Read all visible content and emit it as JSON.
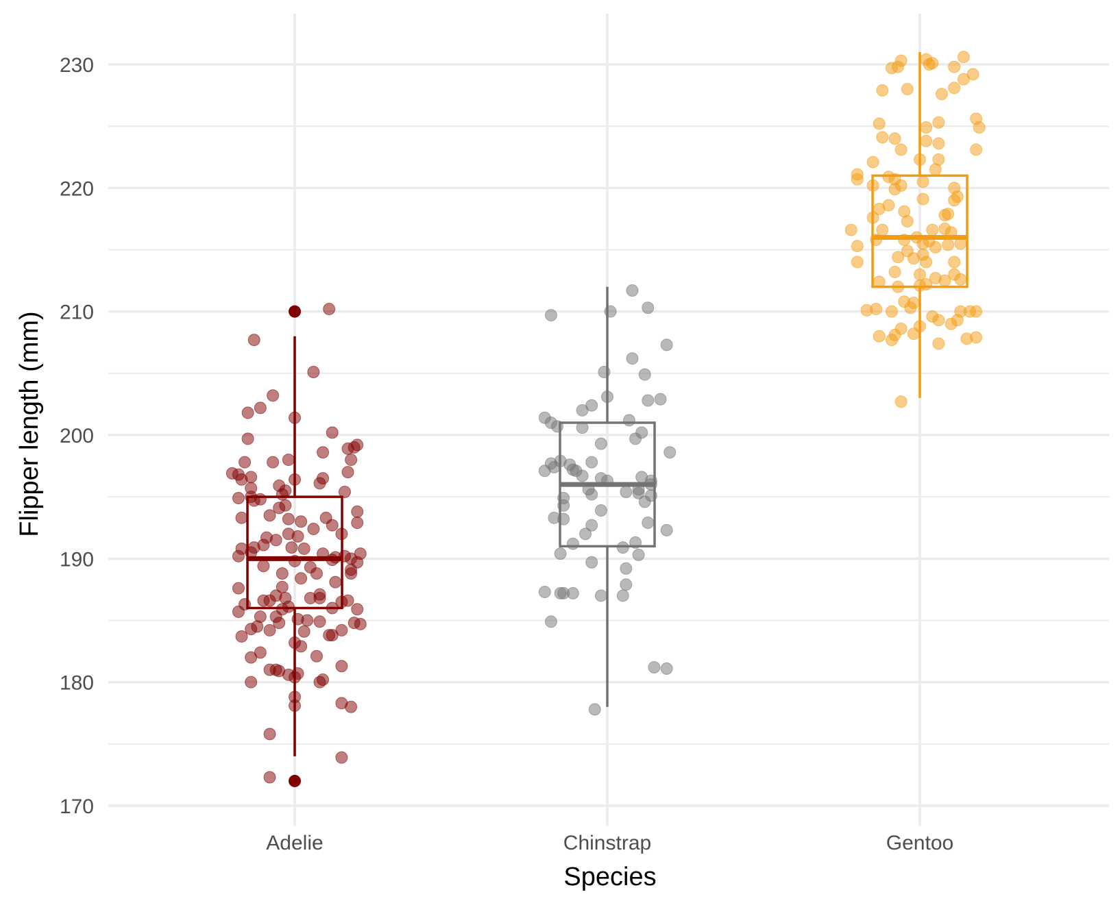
{
  "chart_data": {
    "type": "box",
    "xlabel": "Species",
    "ylabel": "Flipper length (mm)",
    "ylim": [
      168,
      234
    ],
    "yticks": [
      170,
      180,
      190,
      200,
      210,
      220,
      230
    ],
    "categories": [
      "Adelie",
      "Chinstrap",
      "Gentoo"
    ],
    "grid": true,
    "legend": "none",
    "series": [
      {
        "name": "Adelie",
        "color": "#800000",
        "box": {
          "whisker_low": 174,
          "q1": 186,
          "median": 190,
          "q3": 195,
          "whisker_high": 208
        },
        "outliers": [
          172,
          210
        ],
        "points": [
          [
            0.11,
            210.2
          ],
          [
            -0.13,
            207.7
          ],
          [
            0.06,
            205.1
          ],
          [
            -0.07,
            203.2
          ],
          [
            -0.11,
            202.2
          ],
          [
            -0.15,
            201.8
          ],
          [
            0,
            201.4
          ],
          [
            0.12,
            200.2
          ],
          [
            -0.15,
            199.7
          ],
          [
            0.19,
            199
          ],
          [
            0.2,
            199.2
          ],
          [
            0.17,
            198.9
          ],
          [
            0.09,
            198.6
          ],
          [
            -0.07,
            197.8
          ],
          [
            -0.16,
            197.8
          ],
          [
            -0.02,
            198
          ],
          [
            0.18,
            198
          ],
          [
            0.17,
            197
          ],
          [
            -0.2,
            196.9
          ],
          [
            -0.18,
            196.8
          ],
          [
            -0.17,
            196.4
          ],
          [
            -0.14,
            196.6
          ],
          [
            -0.14,
            195.7
          ],
          [
            -0.05,
            195.9
          ],
          [
            0.09,
            196.5
          ],
          [
            0.08,
            196.1
          ],
          [
            0,
            196.4
          ],
          [
            0.16,
            195.4
          ],
          [
            -0.03,
            195.5
          ],
          [
            -0.04,
            195.2
          ],
          [
            -0.18,
            194.9
          ],
          [
            -0.14,
            195
          ],
          [
            -0.13,
            194.7
          ],
          [
            -0.11,
            194.8
          ],
          [
            -0.05,
            194.1
          ],
          [
            -0.03,
            194.3
          ],
          [
            0.2,
            193.8
          ],
          [
            -0.17,
            193.3
          ],
          [
            -0.08,
            193.5
          ],
          [
            -0.02,
            193.2
          ],
          [
            0.1,
            193.3
          ],
          [
            0.12,
            192.7
          ],
          [
            0.2,
            192.9
          ],
          [
            0.02,
            193
          ],
          [
            0.06,
            192.4
          ],
          [
            -0.02,
            192
          ],
          [
            0.15,
            192
          ],
          [
            0.01,
            191.8
          ],
          [
            -0.06,
            191.5
          ],
          [
            -0.09,
            191.7
          ],
          [
            -0.1,
            191.1
          ],
          [
            -0.13,
            190.9
          ],
          [
            -0.17,
            190.8
          ],
          [
            -0.14,
            190.5
          ],
          [
            -0.01,
            190.9
          ],
          [
            0.03,
            190.8
          ],
          [
            0.09,
            190.4
          ],
          [
            0.13,
            190.1
          ],
          [
            0.16,
            190.2
          ],
          [
            0.21,
            190.4
          ],
          [
            0.18,
            190
          ],
          [
            0.12,
            189.9
          ],
          [
            0.2,
            189.7
          ],
          [
            -0.18,
            190.2
          ],
          [
            -0.1,
            189.4
          ],
          [
            0,
            189.8
          ],
          [
            0.05,
            189.3
          ],
          [
            0.07,
            188.8
          ],
          [
            0.18,
            188.8
          ],
          [
            0.18,
            189.1
          ],
          [
            -0.04,
            188.8
          ],
          [
            0.02,
            188.4
          ],
          [
            -0.18,
            187.6
          ],
          [
            -0.04,
            187.7
          ],
          [
            0.08,
            187.1
          ],
          [
            0.13,
            188.1
          ],
          [
            0.05,
            186.8
          ],
          [
            0.08,
            186.8
          ],
          [
            -0.06,
            187
          ],
          [
            -0.1,
            186.6
          ],
          [
            -0.03,
            186.8
          ],
          [
            0.15,
            186.5
          ],
          [
            0.17,
            186.6
          ],
          [
            0.12,
            186
          ],
          [
            -0.16,
            186.3
          ],
          [
            -0.08,
            186.6
          ],
          [
            0.2,
            185.9
          ],
          [
            -0.04,
            185.9
          ],
          [
            -0.02,
            186.1
          ],
          [
            -0.18,
            185.7
          ],
          [
            -0.06,
            185.3
          ],
          [
            -0.11,
            185.3
          ],
          [
            0.01,
            185.1
          ],
          [
            0.04,
            185
          ],
          [
            0.08,
            184.9
          ],
          [
            -0.05,
            184.8
          ],
          [
            -0.12,
            184.5
          ],
          [
            -0.08,
            184.2
          ],
          [
            0.19,
            184.8
          ],
          [
            0.21,
            184.7
          ],
          [
            0.15,
            184.2
          ],
          [
            -0.14,
            184.3
          ],
          [
            0.03,
            184.1
          ],
          [
            -0.17,
            183.7
          ],
          [
            0.11,
            183.8
          ],
          [
            0.12,
            183.8
          ],
          [
            0,
            183.2
          ],
          [
            0.02,
            182.9
          ],
          [
            -0.11,
            182.4
          ],
          [
            0.07,
            182.1
          ],
          [
            -0.14,
            182
          ],
          [
            0.15,
            181.3
          ],
          [
            -0.06,
            181
          ],
          [
            -0.08,
            181
          ],
          [
            -0.05,
            180.9
          ],
          [
            -0.02,
            180.6
          ],
          [
            0,
            180.4
          ],
          [
            0.01,
            180.7
          ],
          [
            -0.14,
            180
          ],
          [
            0.08,
            180
          ],
          [
            0.09,
            180.2
          ],
          [
            0,
            178.8
          ],
          [
            0.15,
            178.3
          ],
          [
            0,
            178.1
          ],
          [
            0.18,
            178
          ],
          [
            -0.08,
            175.8
          ],
          [
            0.15,
            173.9
          ],
          [
            -0.08,
            172.3
          ]
        ]
      },
      {
        "name": "Chinstrap",
        "color": "#737373",
        "box": {
          "whisker_low": 178,
          "q1": 191,
          "median": 196,
          "q3": 201,
          "whisker_high": 212
        },
        "outliers": [],
        "points": [
          [
            0.08,
            211.7
          ],
          [
            -0.18,
            209.7
          ],
          [
            0.01,
            210
          ],
          [
            0.13,
            210.3
          ],
          [
            0.19,
            207.3
          ],
          [
            0.08,
            206.2
          ],
          [
            -0.01,
            205.1
          ],
          [
            0.12,
            204.9
          ],
          [
            -0.05,
            202.4
          ],
          [
            0.13,
            202.8
          ],
          [
            0.17,
            202.9
          ],
          [
            -0.08,
            202
          ],
          [
            0,
            203.1
          ],
          [
            -0.2,
            201.4
          ],
          [
            -0.18,
            201
          ],
          [
            -0.16,
            200.7
          ],
          [
            -0.08,
            200.6
          ],
          [
            0.07,
            201.2
          ],
          [
            0.11,
            200.2
          ],
          [
            0.09,
            199.7
          ],
          [
            -0.02,
            199.3
          ],
          [
            0.2,
            198.6
          ],
          [
            -0.18,
            197.7
          ],
          [
            -0.15,
            197.9
          ],
          [
            -0.12,
            197.6
          ],
          [
            -0.11,
            197.2
          ],
          [
            -0.1,
            197.1
          ],
          [
            -0.2,
            197.1
          ],
          [
            -0.17,
            197.4
          ],
          [
            -0.05,
            197.8
          ],
          [
            -0.08,
            196.7
          ],
          [
            -0.02,
            196.5
          ],
          [
            0,
            196.3
          ],
          [
            0.14,
            196.3
          ],
          [
            0.14,
            196
          ],
          [
            0.11,
            196.6
          ],
          [
            0.1,
            195.3
          ],
          [
            0.06,
            195.4
          ],
          [
            -0.06,
            195.6
          ],
          [
            -0.05,
            195.2
          ],
          [
            -0.14,
            194.9
          ],
          [
            0.12,
            194.6
          ],
          [
            0.14,
            195.1
          ],
          [
            0.1,
            195.6
          ],
          [
            -0.14,
            194.3
          ],
          [
            -0.02,
            193.9
          ],
          [
            -0.14,
            193.2
          ],
          [
            -0.17,
            193.3
          ],
          [
            -0.05,
            192.7
          ],
          [
            0.13,
            192.9
          ],
          [
            0.19,
            192.3
          ],
          [
            -0.07,
            192
          ],
          [
            -0.11,
            191.2
          ],
          [
            0.09,
            191.3
          ],
          [
            0.05,
            190.9
          ],
          [
            0.1,
            190.3
          ],
          [
            -0.15,
            190.4
          ],
          [
            -0.05,
            189.7
          ],
          [
            0.06,
            189.2
          ],
          [
            0.06,
            187.9
          ],
          [
            -0.15,
            187.2
          ],
          [
            -0.2,
            187.3
          ],
          [
            -0.14,
            187.2
          ],
          [
            -0.11,
            187.2
          ],
          [
            -0.02,
            187
          ],
          [
            0.05,
            187
          ],
          [
            -0.18,
            184.9
          ],
          [
            0.15,
            181.2
          ],
          [
            0.19,
            181.1
          ],
          [
            -0.04,
            177.8
          ]
        ]
      },
      {
        "name": "Gentoo",
        "color": "#f39c12",
        "box": {
          "whisker_low": 203,
          "q1": 212,
          "median": 216,
          "q3": 221,
          "whisker_high": 231
        },
        "outliers": [],
        "points": [
          [
            0.14,
            230.6
          ],
          [
            -0.06,
            230.3
          ],
          [
            0.02,
            230.4
          ],
          [
            0.03,
            230
          ],
          [
            0.11,
            229.8
          ],
          [
            -0.07,
            229.8
          ],
          [
            0.04,
            230.1
          ],
          [
            -0.09,
            229.7
          ],
          [
            0.17,
            229.2
          ],
          [
            0.14,
            228.8
          ],
          [
            0.11,
            228.1
          ],
          [
            -0.04,
            228
          ],
          [
            -0.12,
            227.9
          ],
          [
            0.07,
            227.6
          ],
          [
            0.18,
            225.6
          ],
          [
            -0.13,
            225.2
          ],
          [
            0.06,
            225.3
          ],
          [
            0.02,
            224.9
          ],
          [
            0.19,
            224.9
          ],
          [
            -0.08,
            224
          ],
          [
            -0.12,
            224.1
          ],
          [
            0.02,
            223.8
          ],
          [
            0.06,
            223.6
          ],
          [
            0.18,
            223.1
          ],
          [
            -0.06,
            223.1
          ],
          [
            0,
            222.3
          ],
          [
            0.06,
            222.3
          ],
          [
            -0.15,
            222.1
          ],
          [
            -0.2,
            221.1
          ],
          [
            0.05,
            221.5
          ],
          [
            -0.1,
            220.9
          ],
          [
            -0.2,
            220.7
          ],
          [
            -0.08,
            220.7
          ],
          [
            -0.15,
            220.2
          ],
          [
            0.01,
            220.5
          ],
          [
            0.11,
            220
          ],
          [
            -0.06,
            220.2
          ],
          [
            -0.08,
            219.9
          ],
          [
            0.12,
            219.3
          ],
          [
            0.11,
            219
          ],
          [
            0.01,
            219.1
          ],
          [
            -0.1,
            218.6
          ],
          [
            -0.13,
            218.3
          ],
          [
            -0.05,
            218.1
          ],
          [
            0.08,
            217.8
          ],
          [
            0.09,
            217.9
          ],
          [
            -0.15,
            217.6
          ],
          [
            -0.04,
            217.3
          ],
          [
            0.08,
            216.7
          ],
          [
            0.04,
            216.6
          ],
          [
            -0.22,
            216.6
          ],
          [
            0.1,
            216.4
          ],
          [
            -0.12,
            216.6
          ],
          [
            -0.14,
            215.8
          ],
          [
            -0.05,
            215.8
          ],
          [
            -0.01,
            216
          ],
          [
            0.01,
            215.5
          ],
          [
            0.03,
            215.7
          ],
          [
            0.05,
            215.2
          ],
          [
            -0.2,
            215.3
          ],
          [
            0.09,
            215.4
          ],
          [
            0.13,
            215.5
          ],
          [
            -0.04,
            214.9
          ],
          [
            0.01,
            214.6
          ],
          [
            -0.07,
            214.4
          ],
          [
            -0.02,
            214.3
          ],
          [
            0.02,
            214
          ],
          [
            0.11,
            214
          ],
          [
            -0.2,
            214
          ],
          [
            -0.08,
            213.2
          ],
          [
            0,
            213
          ],
          [
            0.05,
            212.7
          ],
          [
            0.08,
            212.5
          ],
          [
            0.13,
            212.6
          ],
          [
            0.02,
            212.2
          ],
          [
            -0.07,
            212
          ],
          [
            0,
            212.1
          ],
          [
            -0.13,
            212.4
          ],
          [
            0.11,
            213
          ],
          [
            -0.05,
            210.8
          ],
          [
            -0.02,
            210.7
          ],
          [
            -0.14,
            210.2
          ],
          [
            -0.17,
            210.1
          ],
          [
            -0.09,
            210
          ],
          [
            -0.03,
            210.3
          ],
          [
            0.04,
            209.6
          ],
          [
            0.06,
            209.3
          ],
          [
            0.1,
            209
          ],
          [
            0.13,
            210
          ],
          [
            0.16,
            210
          ],
          [
            0.18,
            210
          ],
          [
            0.12,
            209.3
          ],
          [
            0,
            208.8
          ],
          [
            -0.06,
            208.6
          ],
          [
            -0.02,
            208.2
          ],
          [
            -0.08,
            208.1
          ],
          [
            -0.13,
            208
          ],
          [
            -0.09,
            207.7
          ],
          [
            0.06,
            207.4
          ],
          [
            0.15,
            207.8
          ],
          [
            0.18,
            207.9
          ],
          [
            -0.06,
            202.7
          ]
        ]
      }
    ]
  }
}
